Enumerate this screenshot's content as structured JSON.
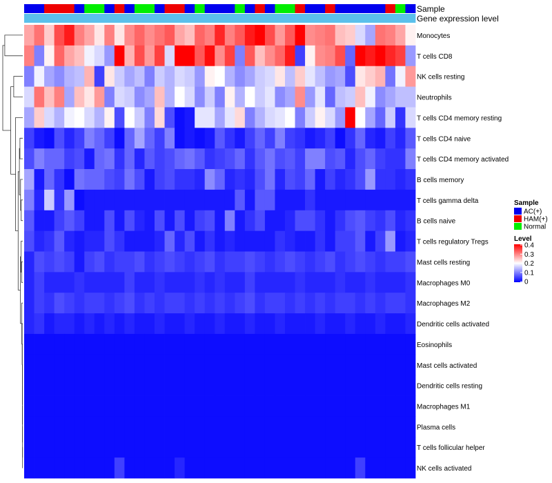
{
  "chart_data": {
    "type": "heatmap",
    "title": "",
    "annotation_labels": {
      "sample": "Sample",
      "gene_expression": "Gene expression level"
    },
    "rows": [
      "Monocytes",
      "T cells CD8",
      "NK cells resting",
      "Neutrophils",
      "T cells CD4 memory resting",
      "T cells CD4 naive",
      "T cells CD4 memory activated",
      "B cells memory",
      "T cells gamma delta",
      "B cells naive",
      "T cells regulatory  Tregs",
      "Mast cells resting",
      "Macrophages M0",
      "Macrophages M2",
      "Dendritic cells activated",
      "Eosinophils",
      "Mast cells activated",
      "Dendritic cells resting",
      "Macrophages M1",
      "Plasma cells",
      "T cells follicular helper",
      "NK cells activated"
    ],
    "sample_groups": [
      "AC(+)",
      "AC(+)",
      "HAM(+)",
      "HAM(+)",
      "HAM(+)",
      "AC(+)",
      "Normal",
      "Normal",
      "AC(+)",
      "HAM(+)",
      "AC(+)",
      "Normal",
      "Normal",
      "AC(+)",
      "HAM(+)",
      "HAM(+)",
      "AC(+)",
      "Normal",
      "AC(+)",
      "AC(+)",
      "AC(+)",
      "Normal",
      "AC(+)",
      "HAM(+)",
      "AC(+)",
      "Normal",
      "Normal",
      "HAM(+)",
      "AC(+)",
      "AC(+)",
      "HAM(+)",
      "AC(+)",
      "AC(+)",
      "AC(+)",
      "AC(+)",
      "AC(+)",
      "HAM(+)",
      "Normal",
      "AC(+)"
    ],
    "gene_expression_level_color": "#5bc0eb",
    "values": [
      [
        0.27,
        0.31,
        0.24,
        0.34,
        0.38,
        0.3,
        0.27,
        0.22,
        0.3,
        0.22,
        0.29,
        0.32,
        0.29,
        0.31,
        0.33,
        0.27,
        0.25,
        0.32,
        0.3,
        0.37,
        0.3,
        0.33,
        0.38,
        0.4,
        0.34,
        0.28,
        0.33,
        0.41,
        0.29,
        0.3,
        0.31,
        0.25,
        0.24,
        0.17,
        0.13,
        0.31,
        0.3,
        0.27,
        0.21
      ],
      [
        0.3,
        0.1,
        0.21,
        0.32,
        0.27,
        0.25,
        0.19,
        0.17,
        0.12,
        0.41,
        0.26,
        0.34,
        0.28,
        0.35,
        0.17,
        0.4,
        0.41,
        0.33,
        0.39,
        0.29,
        0.35,
        0.1,
        0.33,
        0.25,
        0.29,
        0.32,
        0.38,
        0.05,
        0.21,
        0.29,
        0.3,
        0.34,
        0.08,
        0.41,
        0.38,
        0.4,
        0.37,
        0.35,
        0.12
      ],
      [
        0.1,
        0.19,
        0.13,
        0.11,
        0.14,
        0.15,
        0.26,
        0.05,
        0.22,
        0.16,
        0.13,
        0.15,
        0.1,
        0.16,
        0.14,
        0.17,
        0.16,
        0.12,
        0.21,
        0.2,
        0.14,
        0.11,
        0.13,
        0.16,
        0.17,
        0.22,
        0.15,
        0.24,
        0.18,
        0.15,
        0.12,
        0.13,
        0.06,
        0.22,
        0.24,
        0.26,
        0.09,
        0.19,
        0.28
      ],
      [
        0.17,
        0.31,
        0.25,
        0.3,
        0.13,
        0.25,
        0.22,
        0.28,
        0.1,
        0.17,
        0.16,
        0.11,
        0.13,
        0.25,
        0.14,
        0.2,
        0.17,
        0.11,
        0.16,
        0.1,
        0.21,
        0.14,
        0.2,
        0.16,
        0.18,
        0.11,
        0.13,
        0.29,
        0.12,
        0.18,
        0.08,
        0.15,
        0.16,
        0.25,
        0.19,
        0.11,
        0.13,
        0.15,
        0.15
      ],
      [
        0.13,
        0.24,
        0.17,
        0.14,
        0.19,
        0.2,
        0.17,
        0.14,
        0.21,
        0.06,
        0.2,
        0.16,
        0.1,
        0.23,
        0.06,
        0.01,
        0.02,
        0.18,
        0.18,
        0.13,
        0.18,
        0.23,
        0.1,
        0.14,
        0.17,
        0.18,
        0.2,
        0.1,
        0.16,
        0.21,
        0.17,
        0.12,
        0.4,
        0.2,
        0.13,
        0.08,
        0.16,
        0.04,
        0.17
      ],
      [
        0.05,
        0.02,
        0.01,
        0.06,
        0.03,
        0.05,
        0.1,
        0.08,
        0.05,
        0.01,
        0.08,
        0.13,
        0.08,
        0.05,
        0.1,
        0.01,
        0.02,
        0.01,
        0.02,
        0.07,
        0.04,
        0.02,
        0.05,
        0.08,
        0.05,
        0.1,
        0.05,
        0.04,
        0.02,
        0.03,
        0.05,
        0.01,
        0.04,
        0.08,
        0.03,
        0.02,
        0.05,
        0.03,
        0.07
      ],
      [
        0.06,
        0.1,
        0.08,
        0.08,
        0.05,
        0.06,
        0.02,
        0.08,
        0.09,
        0.04,
        0.08,
        0.03,
        0.07,
        0.05,
        0.06,
        0.08,
        0.09,
        0.07,
        0.04,
        0.05,
        0.06,
        0.08,
        0.04,
        0.07,
        0.09,
        0.06,
        0.07,
        0.05,
        0.1,
        0.1,
        0.06,
        0.07,
        0.03,
        0.06,
        0.08,
        0.05,
        0.04,
        0.04,
        0.1
      ],
      [
        0.13,
        0.02,
        0.08,
        0.04,
        0.01,
        0.09,
        0.08,
        0.08,
        0.06,
        0.05,
        0.09,
        0.06,
        0.02,
        0.05,
        0.06,
        0.04,
        0.04,
        0.03,
        0.11,
        0.08,
        0.03,
        0.04,
        0.03,
        0.06,
        0.09,
        0.03,
        0.06,
        0.05,
        0.08,
        0.02,
        0.05,
        0.03,
        0.04,
        0.06,
        0.12,
        0.04,
        0.04,
        0.03,
        0.04
      ],
      [
        0.1,
        0.03,
        0.16,
        0.04,
        0.12,
        0.01,
        0.02,
        0.02,
        0.02,
        0.02,
        0.02,
        0.02,
        0.02,
        0.02,
        0.02,
        0.02,
        0.02,
        0.02,
        0.02,
        0.02,
        0.02,
        0.07,
        0.02,
        0.07,
        0.07,
        0.02,
        0.02,
        0.02,
        0.04,
        0.02,
        0.02,
        0.02,
        0.02,
        0.02,
        0.02,
        0.02,
        0.02,
        0.02,
        0.02
      ],
      [
        0.07,
        0.02,
        0.02,
        0.05,
        0.07,
        0.05,
        0.02,
        0.02,
        0.06,
        0.02,
        0.06,
        0.03,
        0.02,
        0.06,
        0.02,
        0.06,
        0.02,
        0.05,
        0.06,
        0.02,
        0.1,
        0.02,
        0.04,
        0.06,
        0.02,
        0.02,
        0.03,
        0.06,
        0.06,
        0.04,
        0.02,
        0.04,
        0.06,
        0.07,
        0.05,
        0.04,
        0.06,
        0.03,
        0.04
      ],
      [
        0.06,
        0.03,
        0.04,
        0.07,
        0.03,
        0.02,
        0.03,
        0.03,
        0.06,
        0.04,
        0.02,
        0.02,
        0.02,
        0.03,
        0.08,
        0.03,
        0.06,
        0.02,
        0.04,
        0.02,
        0.03,
        0.02,
        0.02,
        0.02,
        0.02,
        0.04,
        0.03,
        0.02,
        0.02,
        0.04,
        0.02,
        0.05,
        0.05,
        0.07,
        0.02,
        0.05,
        0.12,
        0.02,
        0.03
      ],
      [
        0.03,
        0.06,
        0.05,
        0.06,
        0.05,
        0.02,
        0.05,
        0.06,
        0.04,
        0.05,
        0.05,
        0.06,
        0.04,
        0.05,
        0.06,
        0.05,
        0.04,
        0.05,
        0.06,
        0.04,
        0.05,
        0.05,
        0.06,
        0.05,
        0.04,
        0.05,
        0.06,
        0.05,
        0.04,
        0.05,
        0.06,
        0.04,
        0.05,
        0.06,
        0.05,
        0.04,
        0.05,
        0.05,
        0.06
      ],
      [
        0.03,
        0.05,
        0.03,
        0.03,
        0.03,
        0.04,
        0.03,
        0.03,
        0.03,
        0.03,
        0.05,
        0.03,
        0.03,
        0.04,
        0.03,
        0.03,
        0.03,
        0.04,
        0.03,
        0.04,
        0.03,
        0.03,
        0.05,
        0.03,
        0.03,
        0.03,
        0.03,
        0.04,
        0.03,
        0.03,
        0.03,
        0.04,
        0.03,
        0.03,
        0.04,
        0.03,
        0.03,
        0.03,
        0.04
      ],
      [
        0.03,
        0.05,
        0.04,
        0.06,
        0.05,
        0.04,
        0.05,
        0.05,
        0.04,
        0.05,
        0.06,
        0.04,
        0.05,
        0.04,
        0.05,
        0.05,
        0.04,
        0.05,
        0.04,
        0.05,
        0.04,
        0.05,
        0.06,
        0.04,
        0.05,
        0.05,
        0.04,
        0.05,
        0.04,
        0.05,
        0.04,
        0.05,
        0.05,
        0.04,
        0.05,
        0.04,
        0.05,
        0.05,
        0.04
      ],
      [
        0.03,
        0.04,
        0.02,
        0.03,
        0.03,
        0.02,
        0.03,
        0.02,
        0.03,
        0.02,
        0.03,
        0.02,
        0.02,
        0.03,
        0.02,
        0.02,
        0.03,
        0.02,
        0.02,
        0.03,
        0.02,
        0.02,
        0.03,
        0.02,
        0.02,
        0.03,
        0.02,
        0.02,
        0.02,
        0.03,
        0.02,
        0.02,
        0.03,
        0.02,
        0.02,
        0.03,
        0.02,
        0.02,
        0.03
      ],
      [
        0.01,
        0.01,
        0.01,
        0.01,
        0.01,
        0.01,
        0.01,
        0.01,
        0.01,
        0.01,
        0.01,
        0.01,
        0.01,
        0.01,
        0.01,
        0.01,
        0.01,
        0.01,
        0.01,
        0.01,
        0.01,
        0.01,
        0.01,
        0.01,
        0.01,
        0.01,
        0.01,
        0.01,
        0.01,
        0.01,
        0.01,
        0.01,
        0.01,
        0.01,
        0.01,
        0.01,
        0.01,
        0.01,
        0.01
      ],
      [
        0.01,
        0.01,
        0.01,
        0.01,
        0.01,
        0.01,
        0.01,
        0.01,
        0.01,
        0.01,
        0.01,
        0.01,
        0.01,
        0.01,
        0.01,
        0.01,
        0.01,
        0.01,
        0.01,
        0.01,
        0.01,
        0.01,
        0.01,
        0.01,
        0.01,
        0.01,
        0.01,
        0.01,
        0.01,
        0.01,
        0.01,
        0.01,
        0.01,
        0.01,
        0.01,
        0.01,
        0.01,
        0.01,
        0.01
      ],
      [
        0.01,
        0.01,
        0.01,
        0.01,
        0.01,
        0.01,
        0.01,
        0.01,
        0.01,
        0.01,
        0.01,
        0.01,
        0.01,
        0.01,
        0.01,
        0.01,
        0.01,
        0.01,
        0.01,
        0.01,
        0.01,
        0.01,
        0.01,
        0.01,
        0.01,
        0.01,
        0.01,
        0.01,
        0.01,
        0.01,
        0.01,
        0.01,
        0.01,
        0.01,
        0.01,
        0.01,
        0.01,
        0.01,
        0.01
      ],
      [
        0.01,
        0.01,
        0.01,
        0.01,
        0.01,
        0.01,
        0.01,
        0.01,
        0.01,
        0.01,
        0.01,
        0.01,
        0.01,
        0.01,
        0.01,
        0.01,
        0.01,
        0.01,
        0.01,
        0.01,
        0.01,
        0.01,
        0.01,
        0.01,
        0.01,
        0.01,
        0.01,
        0.01,
        0.01,
        0.01,
        0.01,
        0.01,
        0.01,
        0.01,
        0.01,
        0.01,
        0.01,
        0.01,
        0.01
      ],
      [
        0.01,
        0.01,
        0.01,
        0.01,
        0.01,
        0.01,
        0.01,
        0.01,
        0.01,
        0.01,
        0.01,
        0.01,
        0.01,
        0.01,
        0.01,
        0.01,
        0.01,
        0.01,
        0.01,
        0.01,
        0.01,
        0.01,
        0.01,
        0.01,
        0.01,
        0.01,
        0.01,
        0.01,
        0.01,
        0.01,
        0.01,
        0.01,
        0.01,
        0.01,
        0.01,
        0.01,
        0.01,
        0.01,
        0.01
      ],
      [
        0.01,
        0.01,
        0.01,
        0.01,
        0.01,
        0.01,
        0.01,
        0.01,
        0.01,
        0.01,
        0.01,
        0.01,
        0.01,
        0.01,
        0.01,
        0.01,
        0.01,
        0.01,
        0.01,
        0.01,
        0.01,
        0.01,
        0.01,
        0.01,
        0.01,
        0.01,
        0.01,
        0.01,
        0.01,
        0.01,
        0.01,
        0.01,
        0.01,
        0.01,
        0.01,
        0.01,
        0.01,
        0.01,
        0.01
      ],
      [
        0.01,
        0.01,
        0.01,
        0.01,
        0.01,
        0.01,
        0.01,
        0.01,
        0.01,
        0.05,
        0.01,
        0.01,
        0.01,
        0.01,
        0.01,
        0.03,
        0.01,
        0.01,
        0.01,
        0.01,
        0.01,
        0.01,
        0.01,
        0.01,
        0.01,
        0.01,
        0.01,
        0.01,
        0.01,
        0.01,
        0.01,
        0.01,
        0.01,
        0.05,
        0.01,
        0.01,
        0.01,
        0.01,
        0.01
      ]
    ],
    "legend": {
      "sample_title": "Sample",
      "sample_items": [
        {
          "label": "AC(+)",
          "color": "#0000ee"
        },
        {
          "label": "HAM(+)",
          "color": "#ee0000"
        },
        {
          "label": "Normal",
          "color": "#00ee00"
        }
      ],
      "level_title": "Level",
      "level_ticks": [
        "0.4",
        "0.3",
        "0.2",
        "0.1",
        "0"
      ],
      "level_range": [
        0,
        0.4
      ],
      "level_colors": {
        "low": "#0000ff",
        "mid": "#ffffff",
        "high": "#ff0000"
      },
      "placement": "right"
    }
  }
}
